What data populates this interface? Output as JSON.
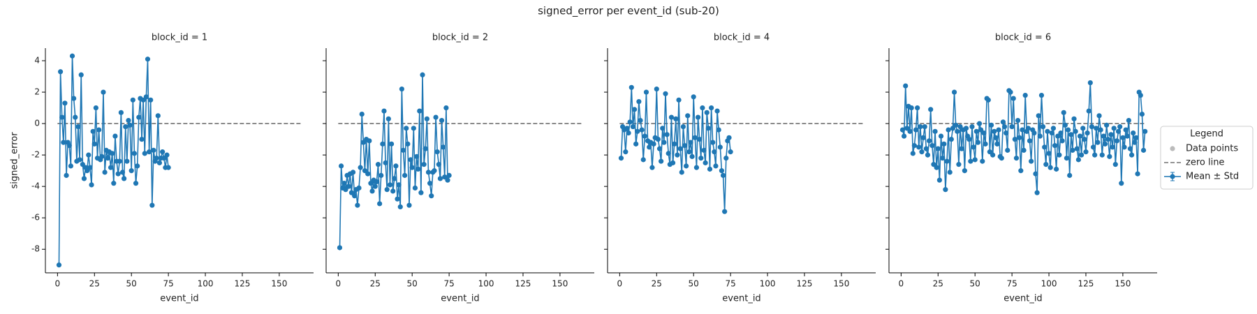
{
  "title": "signed_error per event_id (sub-20)",
  "legend": {
    "title": "Legend",
    "items": [
      {
        "label": "Data points",
        "color": "#bbbbbb"
      },
      {
        "label": "zero line",
        "color": "#555555"
      },
      {
        "label": "Mean ± Std",
        "color": "#1f77b4"
      }
    ]
  },
  "chart_data": [
    {
      "type": "line",
      "title": "block_id = 1",
      "xlabel": "event_id",
      "ylabel": "signed_error",
      "color": "#1f77b4",
      "xlim": [
        -8.2,
        173.2
      ],
      "ylim": [
        -9.5,
        4.8
      ],
      "xticks": [
        0,
        25,
        50,
        75,
        100,
        125,
        150
      ],
      "yticks": [
        -8,
        -6,
        -4,
        -2,
        0,
        2,
        4
      ],
      "reference_line": {
        "y": 0,
        "x": [
          0,
          165
        ]
      },
      "x": [
        1,
        2,
        3,
        4,
        5,
        6,
        7,
        8,
        9,
        10,
        11,
        12,
        13,
        14,
        15,
        16,
        17,
        18,
        19,
        20,
        21,
        22,
        23,
        24,
        25,
        26,
        27,
        28,
        29,
        30,
        31,
        32,
        33,
        34,
        35,
        36,
        37,
        38,
        39,
        40,
        41,
        42,
        43,
        44,
        45,
        46,
        47,
        48,
        49,
        50,
        51,
        52,
        53,
        54,
        55,
        56,
        57,
        58,
        59,
        60,
        61,
        62,
        63,
        64,
        65,
        66,
        67,
        68,
        69,
        70,
        71,
        72,
        73,
        74,
        75
      ],
      "values": [
        -9.0,
        3.3,
        0.4,
        -1.2,
        1.3,
        -3.3,
        -1.2,
        -1.4,
        -2.7,
        4.3,
        1.6,
        0.4,
        -2.4,
        -0.2,
        -2.3,
        3.1,
        -2.6,
        -3.5,
        -2.8,
        -3.0,
        -2.0,
        -2.8,
        -3.9,
        -0.5,
        -1.3,
        1.0,
        -2.2,
        -0.4,
        -2.3,
        -2.1,
        2.0,
        -3.1,
        -1.7,
        -2.2,
        -1.8,
        -2.8,
        -1.9,
        -3.8,
        -0.8,
        -2.4,
        -3.2,
        -2.4,
        0.7,
        -3.1,
        -3.5,
        -0.2,
        -2.4,
        0.2,
        -0.1,
        -3.0,
        1.5,
        -1.9,
        -3.8,
        -2.7,
        0.4,
        1.6,
        -1.0,
        1.5,
        -1.9,
        1.7,
        4.1,
        -1.8,
        1.5,
        -5.2,
        -1.7,
        -2.4,
        -2.2,
        0.5,
        -2.5,
        -2.2,
        -1.8,
        -2.2,
        -2.8,
        -2.0,
        -2.8
      ]
    },
    {
      "type": "line",
      "title": "block_id = 2",
      "xlabel": "event_id",
      "color": "#1f77b4",
      "xlim": [
        -8.2,
        173.2
      ],
      "ylim": [
        -9.5,
        4.8
      ],
      "xticks": [
        0,
        25,
        50,
        75,
        100,
        125,
        150
      ],
      "yticks": [
        -8,
        -6,
        -4,
        -2,
        0,
        2,
        4
      ],
      "reference_line": {
        "y": 0,
        "x": [
          0,
          165
        ]
      },
      "x": [
        1,
        2,
        3,
        4,
        5,
        6,
        7,
        8,
        9,
        10,
        11,
        12,
        13,
        14,
        15,
        16,
        17,
        18,
        19,
        20,
        21,
        22,
        23,
        24,
        25,
        26,
        27,
        28,
        29,
        30,
        31,
        32,
        33,
        34,
        35,
        36,
        37,
        38,
        39,
        40,
        41,
        42,
        43,
        44,
        45,
        46,
        47,
        48,
        49,
        50,
        51,
        52,
        53,
        54,
        55,
        56,
        57,
        58,
        59,
        60,
        61,
        62,
        63,
        64,
        65,
        66,
        67,
        68,
        69,
        70,
        71,
        72,
        73,
        74,
        75
      ],
      "values": [
        -7.9,
        -2.7,
        -4.1,
        -3.8,
        -4.2,
        -3.3,
        -4.0,
        -3.2,
        -4.4,
        -3.1,
        -4.6,
        -4.2,
        -5.2,
        -4.1,
        -2.8,
        0.6,
        -1.2,
        -3.0,
        -1.0,
        -3.2,
        -1.1,
        -3.8,
        -4.3,
        -3.6,
        -4.0,
        -3.7,
        -2.6,
        -5.1,
        -3.3,
        -1.3,
        0.8,
        -2.5,
        -4.2,
        0.3,
        -3.9,
        -1.3,
        -4.3,
        -3.5,
        -2.7,
        -4.8,
        -3.9,
        -5.3,
        2.2,
        -1.7,
        -3.3,
        -0.3,
        -1.3,
        -5.2,
        -2.3,
        -2.8,
        -0.3,
        -4.1,
        -2.1,
        -2.9,
        0.8,
        -4.4,
        3.1,
        -2.6,
        -1.6,
        0.3,
        -3.1,
        -3.8,
        -4.6,
        -3.1,
        -3.0,
        0.4,
        -1.8,
        -2.6,
        -3.5,
        0.2,
        -1.5,
        -3.4,
        1.0,
        -3.6,
        -3.3
      ]
    },
    {
      "type": "line",
      "title": "block_id = 4",
      "xlabel": "event_id",
      "color": "#1f77b4",
      "xlim": [
        -8.2,
        173.2
      ],
      "ylim": [
        -9.5,
        4.8
      ],
      "xticks": [
        0,
        25,
        50,
        75,
        100,
        125,
        150
      ],
      "yticks": [
        -8,
        -6,
        -4,
        -2,
        0,
        2,
        4
      ],
      "reference_line": {
        "y": 0,
        "x": [
          0,
          165
        ]
      },
      "x": [
        1,
        2,
        3,
        4,
        5,
        6,
        7,
        8,
        9,
        10,
        11,
        12,
        13,
        14,
        15,
        16,
        17,
        18,
        19,
        20,
        21,
        22,
        23,
        24,
        25,
        26,
        27,
        28,
        29,
        30,
        31,
        32,
        33,
        34,
        35,
        36,
        37,
        38,
        39,
        40,
        41,
        42,
        43,
        44,
        45,
        46,
        47,
        48,
        49,
        50,
        51,
        52,
        53,
        54,
        55,
        56,
        57,
        58,
        59,
        60,
        61,
        62,
        63,
        64,
        65,
        66,
        67,
        68,
        69,
        70,
        71,
        72,
        73,
        74,
        75
      ],
      "values": [
        -2.2,
        -0.2,
        -0.4,
        -1.8,
        -0.3,
        -0.6,
        0.1,
        2.3,
        -0.2,
        0.9,
        -1.3,
        -0.5,
        1.4,
        0.2,
        -0.4,
        -2.3,
        -0.8,
        2.0,
        -1.1,
        -1.5,
        -1.2,
        -2.8,
        -1.3,
        -0.9,
        2.2,
        -1.0,
        -1.6,
        -2.4,
        -0.3,
        -1.2,
        1.9,
        -0.7,
        -1.9,
        -2.6,
        0.4,
        -2.5,
        -1.3,
        0.3,
        -2.0,
        1.5,
        -1.6,
        -3.1,
        -0.2,
        -1.4,
        -2.7,
        0.5,
        -1.8,
        -1.2,
        -2.1,
        1.7,
        -0.9,
        -2.8,
        0.4,
        -1.0,
        -2.2,
        1.0,
        -1.7,
        -2.5,
        0.7,
        -0.3,
        -2.9,
        1.0,
        -1.2,
        -1.8,
        -2.7,
        0.8,
        -0.4,
        -1.5,
        -3.0,
        -3.3,
        -5.6,
        -2.2,
        -1.1,
        -0.9,
        -1.8
      ]
    },
    {
      "type": "line",
      "title": "block_id = 6",
      "xlabel": "event_id",
      "color": "#1f77b4",
      "xlim": [
        -8.2,
        173.2
      ],
      "ylim": [
        -9.5,
        4.8
      ],
      "xticks": [
        0,
        25,
        50,
        75,
        100,
        125,
        150
      ],
      "yticks": [
        -8,
        -6,
        -4,
        -2,
        0,
        2,
        4
      ],
      "reference_line": {
        "y": 0,
        "x": [
          0,
          165
        ]
      },
      "x": [
        1,
        2,
        3,
        4,
        5,
        6,
        7,
        8,
        9,
        10,
        11,
        12,
        13,
        14,
        15,
        16,
        17,
        18,
        19,
        20,
        21,
        22,
        23,
        24,
        25,
        26,
        27,
        28,
        29,
        30,
        31,
        32,
        33,
        34,
        35,
        36,
        37,
        38,
        39,
        40,
        41,
        42,
        43,
        44,
        45,
        46,
        47,
        48,
        49,
        50,
        51,
        52,
        53,
        54,
        55,
        56,
        57,
        58,
        59,
        60,
        61,
        62,
        63,
        64,
        65,
        66,
        67,
        68,
        69,
        70,
        71,
        72,
        73,
        74,
        75,
        76,
        77,
        78,
        79,
        80,
        81,
        82,
        83,
        84,
        85,
        86,
        87,
        88,
        89,
        90,
        91,
        92,
        93,
        94,
        95,
        96,
        97,
        98,
        99,
        100,
        101,
        102,
        103,
        104,
        105,
        106,
        107,
        108,
        109,
        110,
        111,
        112,
        113,
        114,
        115,
        116,
        117,
        118,
        119,
        120,
        121,
        122,
        123,
        124,
        125,
        126,
        127,
        128,
        129,
        130,
        131,
        132,
        133,
        134,
        135,
        136,
        137,
        138,
        139,
        140,
        141,
        142,
        143,
        144,
        145,
        146,
        147,
        148,
        149,
        150,
        151,
        152,
        153,
        154,
        155,
        156,
        157,
        158,
        159,
        160,
        161,
        162,
        163,
        164,
        165
      ],
      "values": [
        -0.4,
        -0.8,
        2.4,
        -0.3,
        1.1,
        -0.5,
        1.0,
        -1.9,
        -1.4,
        -0.4,
        1.0,
        -1.5,
        -0.2,
        -1.8,
        -0.9,
        -0.2,
        -1.6,
        -2.0,
        -1.1,
        0.9,
        -1.4,
        -2.6,
        -0.5,
        -2.8,
        -1.6,
        -3.6,
        -0.8,
        -2.2,
        -1.3,
        -4.2,
        -2.4,
        -0.4,
        -3.1,
        -1.0,
        -0.3,
        2.0,
        -0.1,
        -0.5,
        -2.6,
        -0.2,
        -1.6,
        -0.4,
        -3.0,
        -0.3,
        -0.8,
        -1.0,
        -2.4,
        -0.2,
        -1.5,
        -2.3,
        -0.5,
        -1.2,
        0.0,
        -0.4,
        -2.4,
        -0.6,
        -1.3,
        1.6,
        1.5,
        -1.8,
        -0.1,
        -2.0,
        -0.5,
        -0.9,
        -1.3,
        -0.4,
        -2.1,
        -2.2,
        0.1,
        -0.2,
        -0.6,
        -1.7,
        2.1,
        2.0,
        -0.2,
        1.6,
        -1.0,
        -2.2,
        0.2,
        -0.9,
        -3.0,
        -0.4,
        -1.7,
        1.8,
        -0.5,
        -0.3,
        -1.1,
        -2.4,
        -0.4,
        -0.6,
        -3.2,
        -4.4,
        0.5,
        -0.8,
        1.8,
        -0.2,
        -1.5,
        -2.6,
        -0.5,
        -1.9,
        -2.8,
        -0.6,
        -0.3,
        -1.4,
        -2.9,
        -0.8,
        -2.0,
        -0.6,
        -1.1,
        0.7,
        -0.1,
        -2.2,
        -0.4,
        -3.3,
        -0.7,
        -1.7,
        0.3,
        -0.5,
        -1.6,
        -2.3,
        -0.8,
        -2.0,
        -0.3,
        -1.0,
        -1.8,
        -0.6,
        0.8,
        2.6,
        -0.2,
        -1.5,
        -2.0,
        -0.3,
        -1.2,
        0.5,
        -0.4,
        -2.0,
        -0.8,
        -1.3,
        -0.1,
        -1.0,
        -2.1,
        -0.7,
        -1.5,
        -0.3,
        -2.6,
        -1.1,
        -0.5,
        -0.2,
        -3.8,
        -0.9,
        -1.5,
        -0.4,
        -0.8,
        0.2,
        -1.6,
        -2.0,
        -0.6,
        -1.2,
        -0.9,
        -3.2,
        2.0,
        1.8,
        0.6,
        -1.7,
        -0.5
      ]
    }
  ]
}
